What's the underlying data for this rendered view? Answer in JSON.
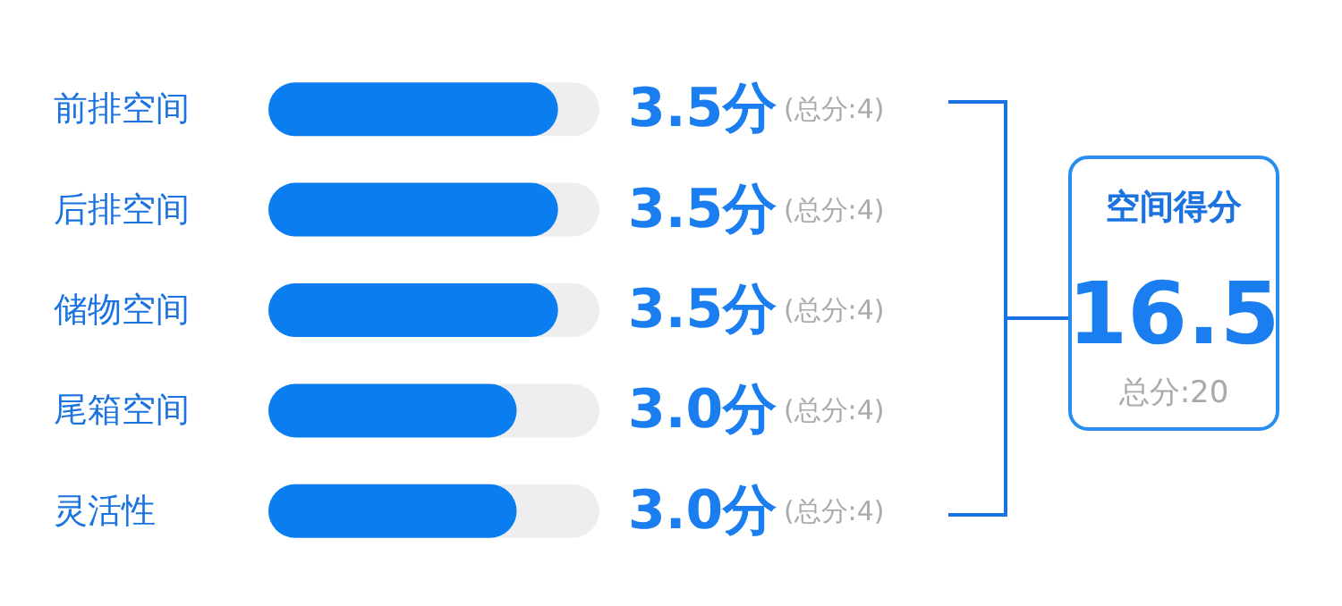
{
  "chart_data": {
    "type": "bar",
    "orientation": "horizontal",
    "categories": [
      "前排空间",
      "后排空间",
      "储物空间",
      "尾箱空间",
      "灵活性"
    ],
    "values": [
      3.5,
      3.5,
      3.5,
      3.0,
      3.0
    ],
    "value_labels": [
      "3.5分",
      "3.5分",
      "3.5分",
      "3.0分",
      "3.0分"
    ],
    "color": "#0a7ef0",
    "xlim": [
      0,
      4
    ],
    "tick_labels": "y",
    "annotations": [
      "(总分:4)",
      "(总分:4)",
      "(总分:4)",
      "(总分:4)",
      "(总分:4)",
      "空间得分",
      "16.5",
      "总分:20"
    ]
  }
}
